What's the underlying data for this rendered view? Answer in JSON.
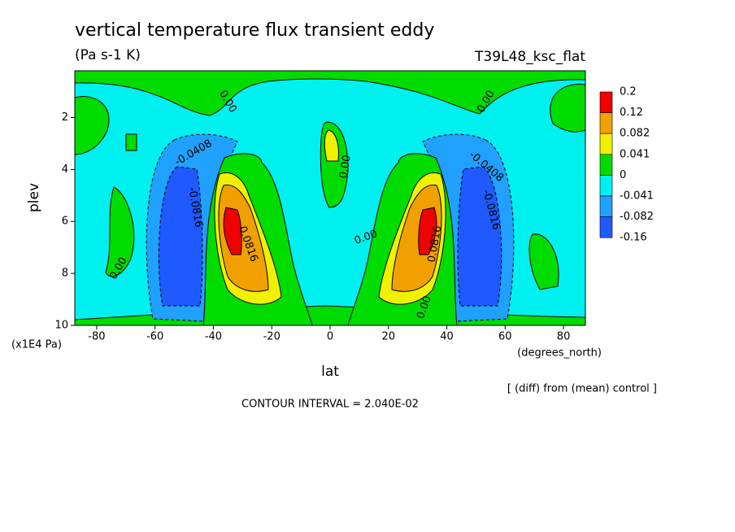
{
  "chart_data": {
    "type": "contour",
    "title": "vertical temperature flux transient eddy",
    "subtitle": "(Pa s-1 K)",
    "run_label": "T39L48_ksc_flat",
    "xlabel": "lat",
    "ylabel": "plev",
    "x_unit": "(degrees_north)",
    "y_unit": "(x1E4 Pa)",
    "xlim": [
      -87.5,
      87.5
    ],
    "ylim": [
      10,
      0.2
    ],
    "xticks": [
      -80,
      -60,
      -40,
      -20,
      0,
      20,
      40,
      60,
      80
    ],
    "yticks": [
      2,
      4,
      6,
      8,
      10
    ],
    "levels": [
      0.2,
      0.12,
      0.082,
      0.041,
      0,
      -0.041,
      -0.082,
      -0.16
    ],
    "colors": [
      "#f00000",
      "#f0a000",
      "#f0f000",
      "#00dc00",
      "#00f0f0",
      "#20a0ff",
      "#1e5aff"
    ],
    "contour_labels": [
      "0.00",
      "-0.0408",
      "-0.0816",
      "0.0816",
      "0.00",
      "-0.0408",
      "-0.0816",
      "0.0816",
      "0.00",
      "0.00",
      "0.00",
      "0.00"
    ],
    "note": "[ (diff) from (mean) control ]",
    "contour_interval": "CONTOUR INTERVAL = 2.040E-02"
  }
}
